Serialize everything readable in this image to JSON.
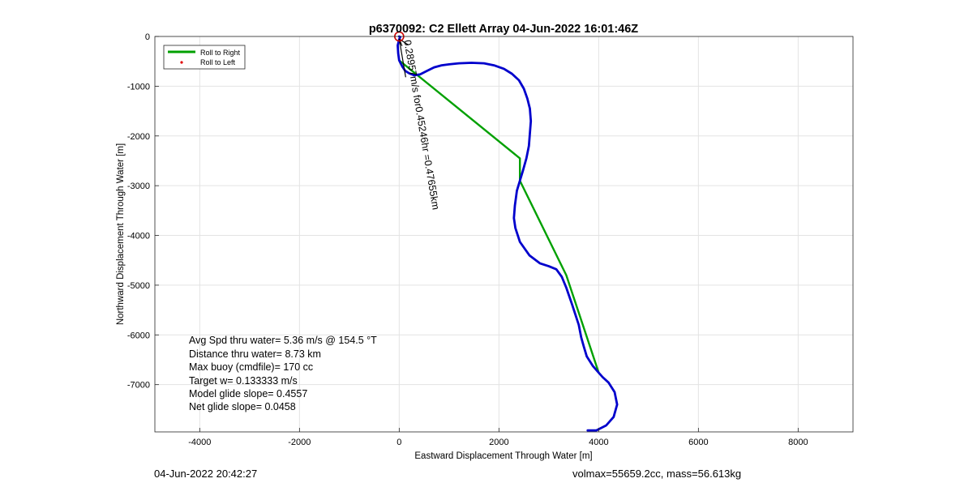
{
  "chart_data": {
    "type": "line",
    "title": "p6370092: C2 Ellett Array 04-Jun-2022 16:01:46Z",
    "xlabel": "Eastward Displacement Through Water [m]",
    "ylabel": "Northward Displacement Through Water [m]",
    "xlim": [
      -4900,
      9100
    ],
    "ylim": [
      -7950,
      0
    ],
    "xticks": [
      -4000,
      -2000,
      0,
      2000,
      4000,
      6000,
      8000
    ],
    "xtick_labels": [
      "-4000",
      "-2000",
      "0",
      "2000",
      "4000",
      "6000",
      "8000"
    ],
    "yticks": [
      0,
      -1000,
      -2000,
      -3000,
      -4000,
      -5000,
      -6000,
      -7000
    ],
    "ytick_labels": [
      "0",
      "-1000",
      "-2000",
      "-3000",
      "-4000",
      "-5000",
      "-6000",
      "-7000"
    ],
    "grid": true,
    "legend_position": "top-left",
    "legend": [
      {
        "label": "Roll to Right",
        "color": "#00a000",
        "style": "line"
      },
      {
        "label": "Roll to Left",
        "color": "#e00000",
        "style": "dot"
      }
    ],
    "series": [
      {
        "color": "#0000cc",
        "x": [
          3780,
          3950,
          4150,
          4300,
          4370,
          4320,
          4200,
          4080,
          4000,
          3880,
          3760,
          3700,
          3650,
          3600,
          3470,
          3350,
          3260,
          3150,
          3000,
          2820,
          2610,
          2420,
          2330,
          2300,
          2320,
          2360,
          2420,
          2480,
          2550,
          2600,
          2620,
          2640,
          2620,
          2570,
          2500,
          2400,
          2260,
          2100,
          1900,
          1700,
          1450,
          1200,
          1000,
          850,
          700,
          560,
          420,
          300,
          200,
          120,
          60,
          0,
          -20,
          -30,
          0,
          20,
          0
        ],
        "y": [
          -7920,
          -7920,
          -7820,
          -7650,
          -7400,
          -7150,
          -6960,
          -6850,
          -6760,
          -6620,
          -6430,
          -6230,
          -6050,
          -5800,
          -5400,
          -5050,
          -4830,
          -4680,
          -4620,
          -4560,
          -4400,
          -4130,
          -3850,
          -3650,
          -3400,
          -3100,
          -2900,
          -2700,
          -2450,
          -2200,
          -1950,
          -1700,
          -1450,
          -1250,
          -1050,
          -880,
          -750,
          -650,
          -580,
          -540,
          -530,
          -540,
          -560,
          -580,
          -620,
          -690,
          -760,
          -780,
          -740,
          -690,
          -600,
          -480,
          -340,
          -180,
          -60,
          -10,
          0
        ]
      },
      {
        "name": "Roll to Right",
        "color": "#00a000",
        "x": [
          4000,
          3350,
          2420,
          2420,
          0
        ],
        "y": [
          -6760,
          -4800,
          -2900,
          -2450,
          -480
        ]
      }
    ],
    "start_marker": {
      "x": 0,
      "y": 0,
      "color": "#cc0000"
    },
    "current_arrow": {
      "label": "0.28957m/s for0.45246hr =0.47655km",
      "x": [
        0,
        130
      ],
      "y": [
        -50,
        -820
      ]
    },
    "annotations": [
      "Avg Spd thru water=  5.36 m/s @ 154.5 °T",
      "Distance thru water=  8.73 km",
      "Max buoy (cmdfile)= 170 cc",
      "Target w= 0.133333 m/s",
      "Model glide slope= 0.4557",
      "Net glide slope= 0.0458"
    ]
  },
  "footer": {
    "timestamp": "04-Jun-2022 20:42:27",
    "mass_info": "volmax=55659.2cc, mass=56.613kg"
  }
}
